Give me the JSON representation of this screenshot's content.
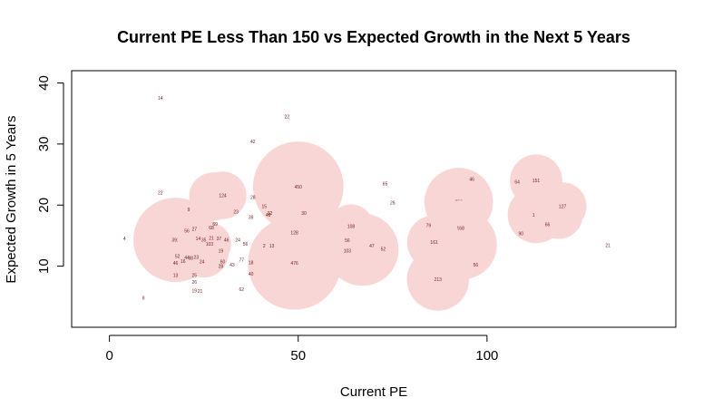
{
  "chart_data": {
    "type": "scatter",
    "title": "Current PE Less Than 150 vs Expected Growth in the Next 5 Years",
    "xlabel": "Current PE",
    "ylabel": "Expected Growth in 5 Years",
    "xlim": [
      -10,
      150
    ],
    "ylim": [
      0,
      42
    ],
    "xticks": [
      0,
      50,
      100
    ],
    "yticks": [
      10,
      20,
      30,
      40
    ],
    "grid": false,
    "legend": "none",
    "bubble_color": "#f9d6d6",
    "label_color": "#6b1f1f",
    "points": [
      {
        "x": 49,
        "y": 10.5,
        "size": 476,
        "label": "476"
      },
      {
        "x": 50,
        "y": 23,
        "size": 450,
        "label": "450"
      },
      {
        "x": 17.5,
        "y": 14.3,
        "size": 392,
        "label": "392"
      },
      {
        "x": 67,
        "y": 12.7,
        "size": 288,
        "label": "288"
      },
      {
        "x": 92.5,
        "y": 20.5,
        "size": 259,
        "label": "259"
      },
      {
        "x": 93.5,
        "y": 13.5,
        "size": 261,
        "label": "261"
      },
      {
        "x": 87,
        "y": 7.8,
        "size": 213,
        "label": "213"
      },
      {
        "x": 86,
        "y": 13.9,
        "size": 161,
        "label": "161"
      },
      {
        "x": 93,
        "y": 16.2,
        "size": 168,
        "label": "168"
      },
      {
        "x": 113,
        "y": 24,
        "size": 151,
        "label": "151"
      },
      {
        "x": 113,
        "y": 18.4,
        "size": 177,
        "label": "177"
      },
      {
        "x": 120,
        "y": 19.8,
        "size": 127,
        "label": "127"
      },
      {
        "x": 119,
        "y": 18.4,
        "size": 128,
        "label": "128"
      },
      {
        "x": 60,
        "y": 15,
        "size": 137,
        "label": "137"
      },
      {
        "x": 64,
        "y": 16.5,
        "size": 108,
        "label": "108"
      },
      {
        "x": 63,
        "y": 12.5,
        "size": 103,
        "label": "103"
      },
      {
        "x": 49,
        "y": 15.5,
        "size": 128,
        "label": "128"
      },
      {
        "x": 27.5,
        "y": 21.4,
        "size": 128,
        "label": "128"
      },
      {
        "x": 30,
        "y": 21.6,
        "size": 124,
        "label": "124"
      },
      {
        "x": 25,
        "y": 12.2,
        "size": 135,
        "label": "135"
      },
      {
        "x": 24,
        "y": 14.4,
        "size": 112,
        "label": "112"
      },
      {
        "x": 26.5,
        "y": 13.6,
        "size": 103,
        "label": "103"
      },
      {
        "x": 13.5,
        "y": 37.5,
        "size": 14,
        "label": "14"
      },
      {
        "x": 47,
        "y": 34.5,
        "size": 22,
        "label": "22"
      },
      {
        "x": 38,
        "y": 30.4,
        "size": 42,
        "label": "42"
      },
      {
        "x": 13.5,
        "y": 22,
        "size": 22,
        "label": "22"
      },
      {
        "x": 73,
        "y": 23.5,
        "size": 65,
        "label": "65"
      },
      {
        "x": 96,
        "y": 24.2,
        "size": 46,
        "label": "46"
      },
      {
        "x": 108,
        "y": 23.8,
        "size": 64,
        "label": "64"
      },
      {
        "x": 75,
        "y": 20.4,
        "size": 26,
        "label": "26"
      },
      {
        "x": 38,
        "y": 21.3,
        "size": 28,
        "label": "28"
      },
      {
        "x": 41,
        "y": 19.8,
        "size": 15,
        "label": "15"
      },
      {
        "x": 42.5,
        "y": 18.7,
        "size": 32,
        "label": "32"
      },
      {
        "x": 42,
        "y": 18.4,
        "size": 48,
        "label": "48"
      },
      {
        "x": 51.5,
        "y": 18.7,
        "size": 30,
        "label": "30"
      },
      {
        "x": 33.5,
        "y": 18.9,
        "size": 23,
        "label": "23"
      },
      {
        "x": 37.5,
        "y": 18,
        "size": 39,
        "label": "39"
      },
      {
        "x": 21,
        "y": 19.3,
        "size": 9,
        "label": "9"
      },
      {
        "x": 84.5,
        "y": 16.7,
        "size": 79,
        "label": "79"
      },
      {
        "x": 109,
        "y": 15.3,
        "size": 90,
        "label": "90"
      },
      {
        "x": 116,
        "y": 16.8,
        "size": 66,
        "label": "66"
      },
      {
        "x": 132,
        "y": 13.4,
        "size": 21,
        "label": "21"
      },
      {
        "x": 97,
        "y": 10.2,
        "size": 56,
        "label": "56"
      },
      {
        "x": 72.5,
        "y": 12.8,
        "size": 52,
        "label": "52"
      },
      {
        "x": 69.5,
        "y": 13.3,
        "size": 47,
        "label": "47"
      },
      {
        "x": 63,
        "y": 14.2,
        "size": 56,
        "label": "56"
      },
      {
        "x": 4,
        "y": 14.5,
        "size": 4,
        "label": "4"
      },
      {
        "x": 9,
        "y": 4.8,
        "size": 8,
        "label": "8"
      },
      {
        "x": 28,
        "y": 16.9,
        "size": 69,
        "label": "69"
      },
      {
        "x": 27,
        "y": 16.3,
        "size": 68,
        "label": "68"
      },
      {
        "x": 20.5,
        "y": 15.8,
        "size": 56,
        "label": "56"
      },
      {
        "x": 22.5,
        "y": 16.1,
        "size": 27,
        "label": "27"
      },
      {
        "x": 23.5,
        "y": 14.5,
        "size": 14,
        "label": "14"
      },
      {
        "x": 25,
        "y": 14.3,
        "size": 35,
        "label": "35"
      },
      {
        "x": 27,
        "y": 14.6,
        "size": 21,
        "label": "21"
      },
      {
        "x": 29,
        "y": 14.5,
        "size": 37,
        "label": "37"
      },
      {
        "x": 31,
        "y": 14.3,
        "size": 46,
        "label": "46"
      },
      {
        "x": 34,
        "y": 14.3,
        "size": 24,
        "label": "24"
      },
      {
        "x": 36,
        "y": 13.6,
        "size": 56,
        "label": "56"
      },
      {
        "x": 41,
        "y": 13.3,
        "size": 2,
        "label": "2"
      },
      {
        "x": 43,
        "y": 13.3,
        "size": 13,
        "label": "13"
      },
      {
        "x": 29.5,
        "y": 12.5,
        "size": 19,
        "label": "19"
      },
      {
        "x": 18,
        "y": 11.6,
        "size": 52,
        "label": "52"
      },
      {
        "x": 20.5,
        "y": 11.4,
        "size": 44,
        "label": "44"
      },
      {
        "x": 21.5,
        "y": 11.3,
        "size": 38,
        "label": "38"
      },
      {
        "x": 23,
        "y": 11.5,
        "size": 23,
        "label": "23"
      },
      {
        "x": 17.5,
        "y": 10.5,
        "size": 46,
        "label": "46"
      },
      {
        "x": 19.5,
        "y": 10.8,
        "size": 16,
        "label": "16"
      },
      {
        "x": 24.5,
        "y": 10.7,
        "size": 24,
        "label": "24"
      },
      {
        "x": 30,
        "y": 10.7,
        "size": 60,
        "label": "60"
      },
      {
        "x": 29.5,
        "y": 10,
        "size": 28,
        "label": "28"
      },
      {
        "x": 32.5,
        "y": 10.2,
        "size": 43,
        "label": "43"
      },
      {
        "x": 35,
        "y": 11,
        "size": 77,
        "label": "77"
      },
      {
        "x": 37.5,
        "y": 10.6,
        "size": 18,
        "label": "18"
      },
      {
        "x": 17.5,
        "y": 8.5,
        "size": 13,
        "label": "13"
      },
      {
        "x": 22.5,
        "y": 8.5,
        "size": 25,
        "label": "25"
      },
      {
        "x": 22.5,
        "y": 7.4,
        "size": 26,
        "label": "26"
      },
      {
        "x": 37.5,
        "y": 8.7,
        "size": 40,
        "label": "40"
      },
      {
        "x": 22.5,
        "y": 6,
        "size": 19,
        "label": "19"
      },
      {
        "x": 24,
        "y": 5.9,
        "size": 21,
        "label": "21"
      },
      {
        "x": 35,
        "y": 6.2,
        "size": 62,
        "label": "62"
      }
    ]
  }
}
